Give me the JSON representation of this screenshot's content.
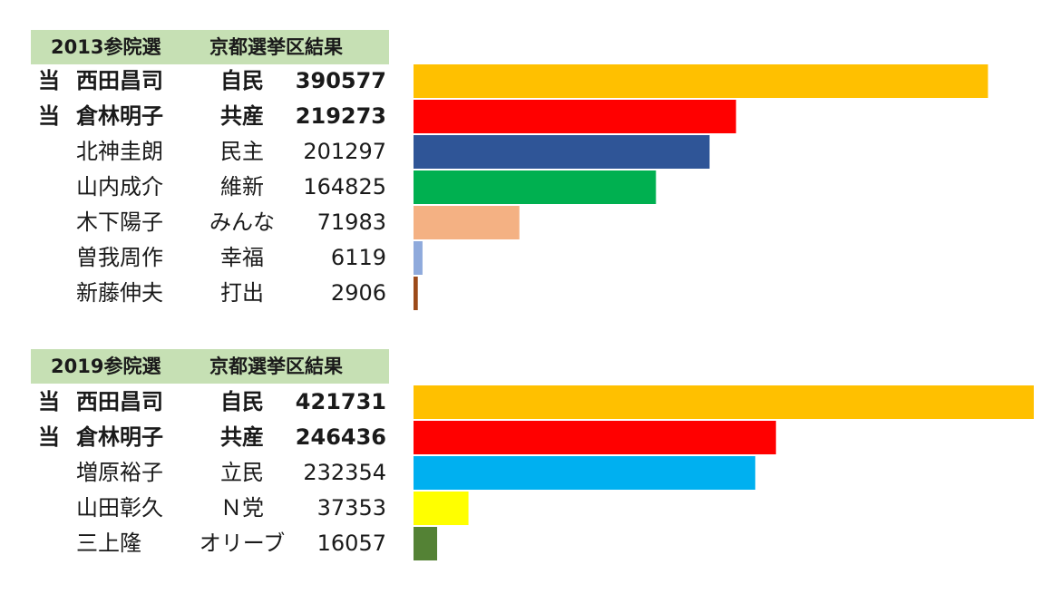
{
  "chart_data": [
    {
      "type": "bar",
      "orientation": "horizontal",
      "title_left": "2013参院選",
      "title_right": "京都選挙区結果",
      "candidates": [
        {
          "mark": "当",
          "name": "西田昌司",
          "party": "自民",
          "votes_label": "390577",
          "value": 390577,
          "color": "#ffc000"
        },
        {
          "mark": "当",
          "name": "倉林明子",
          "party": "共産",
          "votes_label": "219273",
          "value": 219273,
          "color": "#ff0000"
        },
        {
          "mark": "",
          "name": "北神圭朗",
          "party": "民主",
          "votes_label": "201297",
          "value": 201297,
          "color": "#2f5597"
        },
        {
          "mark": "",
          "name": "山内成介",
          "party": "維新",
          "votes_label": "164825",
          "value": 164825,
          "color": "#00b050"
        },
        {
          "mark": "",
          "name": "木下陽子",
          "party": "みんな",
          "votes_label": "71983",
          "value": 71983,
          "color": "#f4b183"
        },
        {
          "mark": "",
          "name": "曽我周作",
          "party": "幸福",
          "votes_label": "6119",
          "value": 6119,
          "color": "#8faadc"
        },
        {
          "mark": "",
          "name": "新藤伸夫",
          "party": "打出",
          "votes_label": "2906",
          "value": 2906,
          "color": "#9c4a1a"
        }
      ]
    },
    {
      "type": "bar",
      "orientation": "horizontal",
      "title_left": "2019参院選",
      "title_right": "京都選挙区結果",
      "candidates": [
        {
          "mark": "当",
          "name": "西田昌司",
          "party": "自民",
          "votes_label": "421731",
          "value": 421731,
          "color": "#ffc000"
        },
        {
          "mark": "当",
          "name": "倉林明子",
          "party": "共産",
          "votes_label": "246436",
          "value": 246436,
          "color": "#ff0000"
        },
        {
          "mark": "",
          "name": "増原裕子",
          "party": "立民",
          "votes_label": "232354",
          "value": 232354,
          "color": "#00b0f0"
        },
        {
          "mark": "",
          "name": "山田彰久",
          "party": "Ｎ党",
          "votes_label": "37353",
          "value": 37353,
          "color": "#ffff00"
        },
        {
          "mark": "",
          "name": "三上隆",
          "party": "オリーブ",
          "votes_label": "16057",
          "value": 16057,
          "color": "#548235"
        }
      ]
    }
  ]
}
